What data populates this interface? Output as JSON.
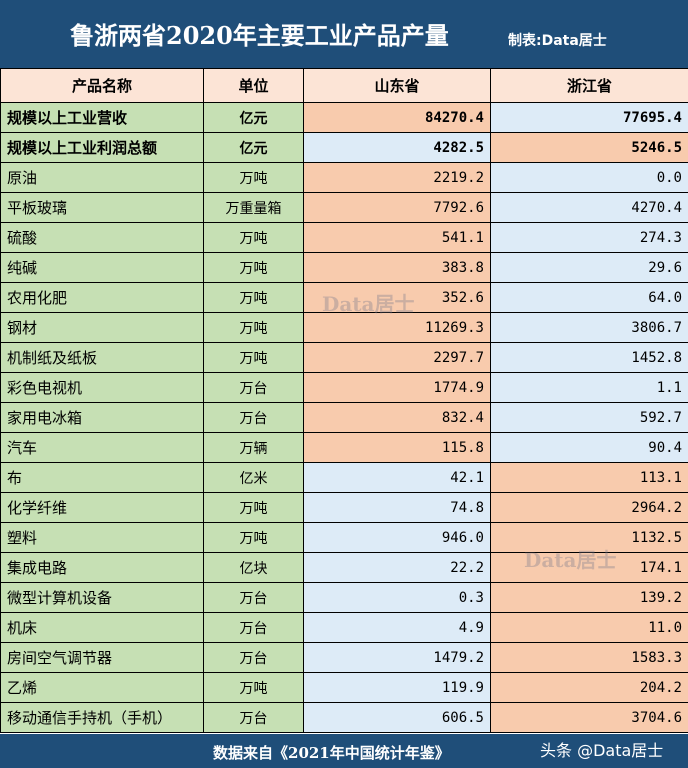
{
  "title": "鲁浙两省2020年主要工业产品产量",
  "credit": "制表:Data居士",
  "headers": [
    "产品名称",
    "单位",
    "山东省",
    "浙江省"
  ],
  "rows": [
    {
      "name": "规模以上工业营收",
      "unit": "亿元",
      "sd": "84270.4",
      "zj": "77695.4",
      "bold": true
    },
    {
      "name": "规模以上工业利润总额",
      "unit": "亿元",
      "sd": "4282.5",
      "zj": "5246.5",
      "bold": true
    },
    {
      "name": "原油",
      "unit": "万吨",
      "sd": "2219.2",
      "zj": "0.0"
    },
    {
      "name": "平板玻璃",
      "unit": "万重量箱",
      "sd": "7792.6",
      "zj": "4270.4"
    },
    {
      "name": "硫酸",
      "unit": "万吨",
      "sd": "541.1",
      "zj": "274.3"
    },
    {
      "name": "纯碱",
      "unit": "万吨",
      "sd": "383.8",
      "zj": "29.6"
    },
    {
      "name": "农用化肥",
      "unit": "万吨",
      "sd": "352.6",
      "zj": "64.0"
    },
    {
      "name": "钢材",
      "unit": "万吨",
      "sd": "11269.3",
      "zj": "3806.7"
    },
    {
      "name": "机制纸及纸板",
      "unit": "万吨",
      "sd": "2297.7",
      "zj": "1452.8"
    },
    {
      "name": "彩色电视机",
      "unit": "万台",
      "sd": "1774.9",
      "zj": "1.1"
    },
    {
      "name": "家用电冰箱",
      "unit": "万台",
      "sd": "832.4",
      "zj": "592.7"
    },
    {
      "name": "汽车",
      "unit": "万辆",
      "sd": "115.8",
      "zj": "90.4"
    },
    {
      "name": "布",
      "unit": "亿米",
      "sd": "42.1",
      "zj": "113.1"
    },
    {
      "name": "化学纤维",
      "unit": "万吨",
      "sd": "74.8",
      "zj": "2964.2"
    },
    {
      "name": "塑料",
      "unit": "万吨",
      "sd": "946.0",
      "zj": "1132.5"
    },
    {
      "name": "集成电路",
      "unit": "亿块",
      "sd": "22.2",
      "zj": "174.1"
    },
    {
      "name": "微型计算机设备",
      "unit": "万台",
      "sd": "0.3",
      "zj": "139.2"
    },
    {
      "name": "机床",
      "unit": "万台",
      "sd": "4.9",
      "zj": "11.0"
    },
    {
      "name": "房间空气调节器",
      "unit": "万台",
      "sd": "1479.2",
      "zj": "1583.3"
    },
    {
      "name": "乙烯",
      "unit": "万吨",
      "sd": "119.9",
      "zj": "204.2"
    },
    {
      "name": "移动通信手持机（手机）",
      "unit": "万台",
      "sd": "606.5",
      "zj": "3704.6"
    }
  ],
  "footer": {
    "source": "数据来自《2021年中国统计年鉴》",
    "watermark": "头条 @Data居士"
  },
  "watermark_logo": "Data居士",
  "colors": {
    "title_bg": "#1f4e79",
    "header_bg": "#fce4d6",
    "label_bg": "#c6e0b4",
    "higher": "#f8cbad",
    "lower": "#ddebf7"
  }
}
